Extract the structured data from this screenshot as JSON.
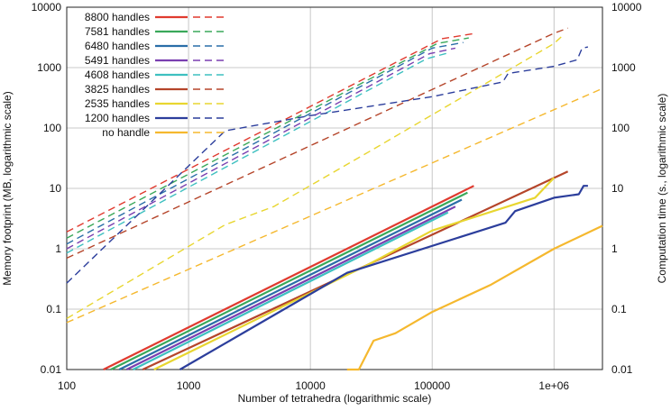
{
  "chart_data": {
    "type": "line",
    "xlabel": "Number of tetrahedra (logarithmic scale)",
    "ylabel_left": "Memory footprint (MB, logarithmic scale)",
    "ylabel_right": "Computation time (s., logarithmic scale)",
    "xscale": "log",
    "yscale": "log",
    "xlim": [
      100,
      2500000
    ],
    "ylim": [
      0.01,
      10000
    ],
    "grid": true,
    "legend_position": "top-left",
    "line_styles": {
      "memory": "solid",
      "time": "dashed"
    },
    "x_ticks": [
      {
        "value": 100,
        "label": "100"
      },
      {
        "value": 1000,
        "label": "1000"
      },
      {
        "value": 10000,
        "label": "10000"
      },
      {
        "value": 100000,
        "label": "100000"
      },
      {
        "value": 1000000,
        "label": "1e+06"
      }
    ],
    "y_ticks": [
      {
        "value": 0.01,
        "label": "0.01"
      },
      {
        "value": 0.1,
        "label": "0.1"
      },
      {
        "value": 1,
        "label": "1"
      },
      {
        "value": 10,
        "label": "10"
      },
      {
        "value": 100,
        "label": "100"
      },
      {
        "value": 1000,
        "label": "1000"
      },
      {
        "value": 10000,
        "label": "10000"
      }
    ],
    "series": [
      {
        "name": "8800 handles",
        "color": "#e03a2f",
        "memory": [
          [
            200,
            0.01
          ],
          [
            220000,
            11
          ]
        ],
        "time": [
          [
            100,
            1.9
          ],
          [
            120000,
            3000
          ],
          [
            230000,
            3700
          ]
        ]
      },
      {
        "name": "7581 handles",
        "color": "#3aa85a",
        "memory": [
          [
            230,
            0.01
          ],
          [
            195000,
            8.5
          ]
        ],
        "time": [
          [
            100,
            1.5
          ],
          [
            110000,
            2500
          ],
          [
            200000,
            3100
          ]
        ]
      },
      {
        "name": "6480 handles",
        "color": "#2a6ea8",
        "memory": [
          [
            270,
            0.01
          ],
          [
            175000,
            6.5
          ]
        ],
        "time": [
          [
            100,
            1.2
          ],
          [
            100000,
            2100
          ],
          [
            180000,
            2600
          ]
        ]
      },
      {
        "name": "5491 handles",
        "color": "#7a3fb0",
        "memory": [
          [
            310,
            0.01
          ],
          [
            155000,
            5
          ]
        ],
        "time": [
          [
            100,
            1.0
          ],
          [
            95000,
            1700
          ],
          [
            155000,
            2100
          ]
        ]
      },
      {
        "name": "4608 handles",
        "color": "#3ec0c0",
        "memory": [
          [
            350,
            0.01
          ],
          [
            135000,
            4
          ]
        ],
        "time": [
          [
            100,
            0.85
          ],
          [
            90000,
            1400
          ],
          [
            135000,
            1750
          ]
        ]
      },
      {
        "name": "3825 handles",
        "color": "#b5452a",
        "memory": [
          [
            420,
            0.01
          ],
          [
            1300000,
            19
          ]
        ],
        "time": [
          [
            100,
            0.7
          ],
          [
            1000000,
            3700
          ],
          [
            1300000,
            4500
          ]
        ]
      },
      {
        "name": "2535 handles",
        "color": "#e8d630",
        "memory": [
          [
            520,
            0.01
          ],
          [
            30000,
            0.55
          ],
          [
            100000,
            2
          ],
          [
            700000,
            7
          ],
          [
            1000000,
            15
          ]
        ],
        "time": [
          [
            100,
            0.07
          ],
          [
            2000,
            2.5
          ],
          [
            5000,
            5
          ],
          [
            30000,
            40
          ],
          [
            1000000,
            2500
          ],
          [
            1200000,
            3500
          ]
        ]
      },
      {
        "name": "1200 handles",
        "color": "#2c3e9c",
        "memory": [
          [
            850,
            0.01
          ],
          [
            20000,
            0.4
          ],
          [
            400000,
            2.7
          ],
          [
            480000,
            4.2
          ],
          [
            1000000,
            7
          ],
          [
            1600000,
            8
          ],
          [
            1750000,
            11
          ],
          [
            1900000,
            11
          ]
        ],
        "time": [
          [
            100,
            0.27
          ],
          [
            2000,
            90
          ],
          [
            10000,
            160
          ],
          [
            100000,
            330
          ],
          [
            380000,
            580
          ],
          [
            420000,
            800
          ],
          [
            1000000,
            1050
          ],
          [
            1550000,
            1350
          ],
          [
            1700000,
            2100
          ],
          [
            1900000,
            2200
          ]
        ]
      },
      {
        "name": "no handle",
        "color": "#f5b82e",
        "memory": [
          [
            20000,
            0.01
          ],
          [
            25000,
            0.01
          ],
          [
            33000,
            0.03
          ],
          [
            50000,
            0.04
          ],
          [
            100000,
            0.09
          ],
          [
            300000,
            0.25
          ],
          [
            1000000,
            1
          ],
          [
            2500000,
            2.4
          ]
        ],
        "time": [
          [
            100,
            0.06
          ],
          [
            2500000,
            450
          ]
        ]
      }
    ]
  }
}
